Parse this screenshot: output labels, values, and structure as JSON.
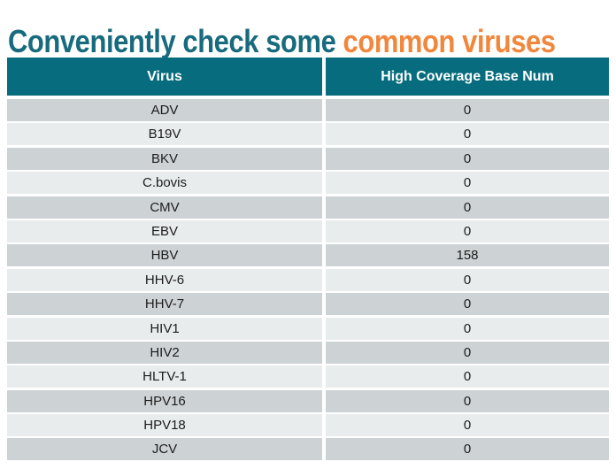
{
  "title": {
    "part1": "Conveniently check some ",
    "part2": "common viruses"
  },
  "table": {
    "columns": [
      "Virus",
      "High Coverage Base Num"
    ],
    "rows": [
      {
        "virus": "ADV",
        "value": "0"
      },
      {
        "virus": "B19V",
        "value": "0"
      },
      {
        "virus": "BKV",
        "value": "0"
      },
      {
        "virus": "C.bovis",
        "value": "0"
      },
      {
        "virus": "CMV",
        "value": "0"
      },
      {
        "virus": "EBV",
        "value": "0"
      },
      {
        "virus": "HBV",
        "value": "158"
      },
      {
        "virus": "HHV-6",
        "value": "0"
      },
      {
        "virus": "HHV-7",
        "value": "0"
      },
      {
        "virus": "HIV1",
        "value": "0"
      },
      {
        "virus": "HIV2",
        "value": "0"
      },
      {
        "virus": "HLTV-1",
        "value": "0"
      },
      {
        "virus": "HPV16",
        "value": "0"
      },
      {
        "virus": "HPV18",
        "value": "0"
      },
      {
        "virus": "JCV",
        "value": "0"
      }
    ]
  },
  "colors": {
    "title_teal": "#186a7d",
    "title_orange": "#f0873c",
    "header_bg": "#076d7e",
    "header_text": "#ffffff",
    "row_odd": "#cdd3d5",
    "row_even": "#e9ecec",
    "cell_text": "#1c1c1c"
  }
}
